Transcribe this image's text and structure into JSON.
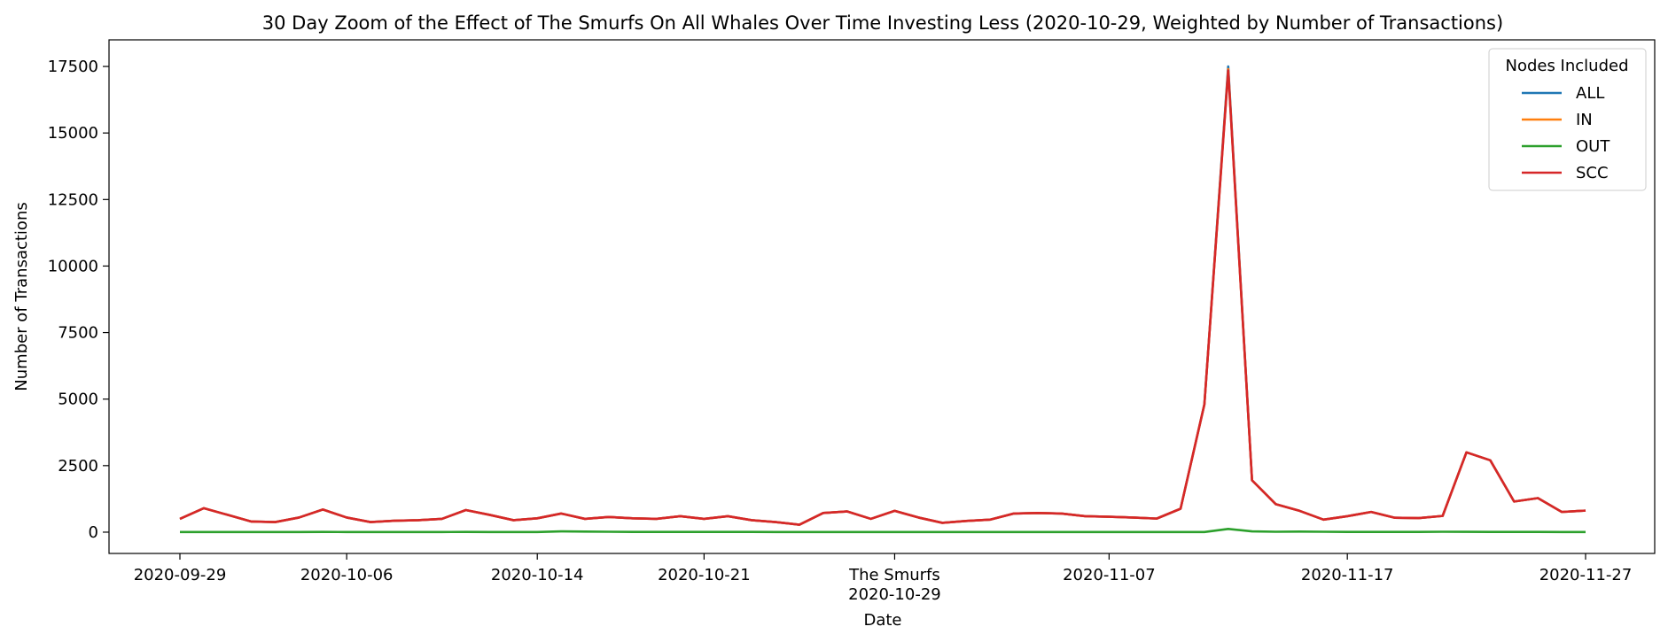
{
  "chart_data": {
    "type": "line",
    "title": "30 Day Zoom of the Effect of The Smurfs On All Whales Over Time Investing Less (2020-10-29, Weighted by Number of Transactions)",
    "xlabel": "Date",
    "ylabel": "Number of Transactions",
    "x_start": "2020-09-29",
    "x_end": "2020-11-27",
    "ylim": [
      -800,
      18500
    ],
    "yticks": [
      0,
      2500,
      5000,
      7500,
      10000,
      12500,
      15000,
      17500
    ],
    "xticks": [
      {
        "date": "2020-09-29",
        "label": "2020-09-29"
      },
      {
        "date": "2020-10-06",
        "label": "2020-10-06"
      },
      {
        "date": "2020-10-14",
        "label": "2020-10-14"
      },
      {
        "date": "2020-10-21",
        "label": "2020-10-21"
      },
      {
        "date": "2020-10-29",
        "label": "The Smurfs",
        "sublabel": "2020-10-29"
      },
      {
        "date": "2020-11-07",
        "label": "2020-11-07"
      },
      {
        "date": "2020-11-17",
        "label": "2020-11-17"
      },
      {
        "date": "2020-11-27",
        "label": "2020-11-27"
      }
    ],
    "legend": {
      "title": "Nodes Included",
      "placement": "top-right"
    },
    "grid": false,
    "series": [
      {
        "name": "ALL",
        "color": "#1f77b4",
        "values": [
          500,
          900,
          650,
          400,
          380,
          550,
          850,
          550,
          380,
          430,
          450,
          500,
          830,
          650,
          450,
          520,
          700,
          500,
          570,
          520,
          500,
          600,
          500,
          600,
          450,
          380,
          280,
          720,
          780,
          500,
          800,
          550,
          350,
          420,
          470,
          700,
          720,
          700,
          600,
          580,
          550,
          510,
          880,
          4800,
          17500,
          1950,
          1050,
          800,
          470,
          600,
          760,
          540,
          530,
          610,
          3000,
          2700,
          1150,
          1280,
          760,
          810
        ]
      },
      {
        "name": "IN",
        "color": "#ff7f0e",
        "values": [
          500,
          900,
          650,
          400,
          380,
          550,
          850,
          550,
          380,
          430,
          450,
          500,
          830,
          650,
          450,
          520,
          700,
          500,
          570,
          520,
          500,
          600,
          500,
          600,
          450,
          380,
          280,
          720,
          780,
          500,
          800,
          550,
          350,
          420,
          470,
          700,
          720,
          700,
          600,
          580,
          550,
          510,
          880,
          4800,
          17400,
          1950,
          1050,
          800,
          470,
          600,
          760,
          540,
          530,
          610,
          3000,
          2700,
          1150,
          1280,
          760,
          810
        ]
      },
      {
        "name": "OUT",
        "color": "#2ca02c",
        "values": [
          5,
          5,
          5,
          5,
          5,
          5,
          8,
          6,
          5,
          5,
          5,
          5,
          10,
          6,
          5,
          5,
          30,
          20,
          15,
          10,
          8,
          8,
          8,
          10,
          8,
          6,
          5,
          5,
          5,
          5,
          5,
          5,
          5,
          5,
          5,
          5,
          5,
          5,
          5,
          5,
          5,
          5,
          5,
          5,
          120,
          30,
          15,
          20,
          15,
          8,
          8,
          8,
          8,
          15,
          12,
          8,
          8,
          8,
          5,
          5
        ]
      },
      {
        "name": "SCC",
        "color": "#d62728",
        "values": [
          500,
          900,
          650,
          400,
          380,
          550,
          850,
          550,
          380,
          430,
          450,
          500,
          830,
          650,
          450,
          520,
          700,
          500,
          570,
          520,
          500,
          600,
          500,
          600,
          450,
          380,
          280,
          720,
          780,
          500,
          800,
          550,
          350,
          420,
          470,
          700,
          720,
          700,
          600,
          580,
          550,
          510,
          880,
          4800,
          17350,
          1950,
          1050,
          800,
          470,
          600,
          760,
          540,
          530,
          610,
          3000,
          2700,
          1150,
          1280,
          760,
          810
        ]
      }
    ]
  }
}
